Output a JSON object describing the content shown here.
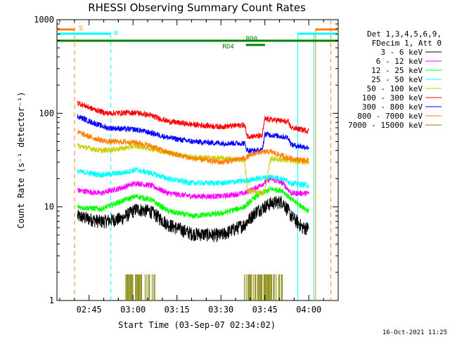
{
  "chart_data": {
    "type": "line",
    "title": "RHESSI Observing Summary Count Rates",
    "xlabel": "Start Time (03-Sep-07 02:34:02)",
    "ylabel": "Count Rate (s⁻¹ detector⁻¹)",
    "yscale": "log",
    "ylim": [
      1,
      1000
    ],
    "y_ticks": [
      1,
      10,
      100,
      1000
    ],
    "y_tick_labels": [
      "1",
      "10",
      "100",
      "1000"
    ],
    "xlim_minutes": [
      0,
      96
    ],
    "x_ticks": [
      {
        "minute": 10.97,
        "label": "02:45"
      },
      {
        "minute": 25.97,
        "label": "03:00"
      },
      {
        "minute": 40.97,
        "label": "03:15"
      },
      {
        "minute": 55.97,
        "label": "03:30"
      },
      {
        "minute": 70.97,
        "label": "03:45"
      },
      {
        "minute": 85.97,
        "label": "04:00"
      }
    ],
    "legend_header": [
      "Det 1,3,4,5,6,9,",
      "FDecim 1, Att 0"
    ],
    "series": [
      {
        "name": "3 - 6 keV",
        "color": "#000000",
        "knots": [
          [
            7,
            8
          ],
          [
            15,
            7
          ],
          [
            22,
            7.5
          ],
          [
            27,
            9.5
          ],
          [
            32,
            9
          ],
          [
            38,
            6.5
          ],
          [
            46,
            5.2
          ],
          [
            56,
            5
          ],
          [
            64,
            6.5
          ],
          [
            68,
            9
          ],
          [
            73,
            11
          ],
          [
            77,
            11.5
          ],
          [
            80,
            8
          ],
          [
            84,
            6
          ],
          [
            86,
            6
          ]
        ]
      },
      {
        "name": "6 - 12 keV",
        "color": "#ff00ff",
        "knots": [
          [
            7,
            15
          ],
          [
            15,
            14
          ],
          [
            22,
            16
          ],
          [
            27,
            18
          ],
          [
            32,
            17
          ],
          [
            38,
            14
          ],
          [
            46,
            13
          ],
          [
            56,
            13
          ],
          [
            64,
            14
          ],
          [
            68,
            16
          ],
          [
            73,
            20
          ],
          [
            77,
            18
          ],
          [
            80,
            14
          ],
          [
            86,
            14
          ]
        ]
      },
      {
        "name": "12 - 25 keV",
        "color": "#00ff00",
        "knots": [
          [
            7,
            10
          ],
          [
            15,
            9.5
          ],
          [
            22,
            11.5
          ],
          [
            27,
            13
          ],
          [
            32,
            12
          ],
          [
            38,
            9
          ],
          [
            46,
            8
          ],
          [
            56,
            8.5
          ],
          [
            64,
            10
          ],
          [
            68,
            13
          ],
          [
            73,
            15.5
          ],
          [
            77,
            15
          ],
          [
            80,
            12
          ],
          [
            86,
            9
          ]
        ]
      },
      {
        "name": "25 - 50 keV",
        "color": "#00ffff",
        "knots": [
          [
            7,
            24
          ],
          [
            15,
            22
          ],
          [
            22,
            23
          ],
          [
            27,
            25
          ],
          [
            32,
            23
          ],
          [
            38,
            20
          ],
          [
            46,
            18
          ],
          [
            56,
            18
          ],
          [
            64,
            19
          ],
          [
            68,
            20
          ],
          [
            73,
            21
          ],
          [
            77,
            20
          ],
          [
            80,
            18
          ],
          [
            86,
            17
          ]
        ]
      },
      {
        "name": "50 - 100 keV",
        "color": "#cccc00",
        "knots": [
          [
            7,
            45
          ],
          [
            15,
            40
          ],
          [
            22,
            42
          ],
          [
            27,
            45
          ],
          [
            32,
            42
          ],
          [
            38,
            38
          ],
          [
            46,
            34
          ],
          [
            56,
            33
          ],
          [
            64,
            32
          ],
          [
            65,
            15
          ],
          [
            70,
            14
          ],
          [
            71,
            15
          ],
          [
            73,
            33
          ],
          [
            77,
            32
          ],
          [
            80,
            31
          ],
          [
            86,
            30
          ]
        ]
      },
      {
        "name": "100 - 300 keV",
        "color": "#ff0000",
        "knots": [
          [
            7,
            130
          ],
          [
            12,
            112
          ],
          [
            17,
            100
          ],
          [
            27,
            102
          ],
          [
            32,
            95
          ],
          [
            38,
            82
          ],
          [
            46,
            76
          ],
          [
            56,
            72
          ],
          [
            64,
            75
          ],
          [
            65,
            57
          ],
          [
            70,
            57
          ],
          [
            71,
            87
          ],
          [
            76,
            84
          ],
          [
            79,
            80
          ],
          [
            80,
            70
          ],
          [
            86,
            65
          ]
        ]
      },
      {
        "name": "300 - 800 keV",
        "color": "#0000ff",
        "knots": [
          [
            7,
            93
          ],
          [
            12,
            80
          ],
          [
            17,
            70
          ],
          [
            27,
            67
          ],
          [
            32,
            62
          ],
          [
            38,
            55
          ],
          [
            46,
            50
          ],
          [
            56,
            48
          ],
          [
            64,
            48
          ],
          [
            65,
            40
          ],
          [
            70,
            40
          ],
          [
            71,
            60
          ],
          [
            76,
            57
          ],
          [
            79,
            55
          ],
          [
            80,
            46
          ],
          [
            86,
            43
          ]
        ]
      },
      {
        "name": "800 - 7000 keV",
        "color": "#ff8000",
        "knots": [
          [
            7,
            63
          ],
          [
            12,
            55
          ],
          [
            17,
            50
          ],
          [
            27,
            49
          ],
          [
            32,
            45
          ],
          [
            38,
            38
          ],
          [
            46,
            33
          ],
          [
            56,
            30
          ],
          [
            64,
            33
          ],
          [
            68,
            38
          ],
          [
            73,
            39
          ],
          [
            77,
            35
          ],
          [
            80,
            33
          ],
          [
            86,
            31
          ]
        ]
      },
      {
        "name": "7000 - 15000 keV",
        "color": "#808000",
        "bursts": [
          [
            23.5,
            33.5
          ],
          [
            64,
            77
          ]
        ],
        "burst_level": 1.9
      }
    ],
    "annotations": {
      "saa_label": "S",
      "night_label": "N",
      "rd0_label": "RD0",
      "rd4_label": "RD4",
      "saa_color": "#ff8000",
      "night_color": "#00ffff",
      "decim_color": "#008000",
      "saa_intervals": [
        [
          0,
          6
        ]
      ],
      "night_intervals": [
        [
          0,
          18.4
        ],
        [
          82.2,
          96
        ]
      ],
      "saa_dashed_lines": [
        6,
        93.5
      ],
      "night_dashed_lines": [
        18.4
      ],
      "night_solid_lines": [
        82.2,
        87.7
      ],
      "saa_solid_lines": [
        88.3
      ]
    }
  },
  "timestamp": "16-Oct-2021 11:25"
}
